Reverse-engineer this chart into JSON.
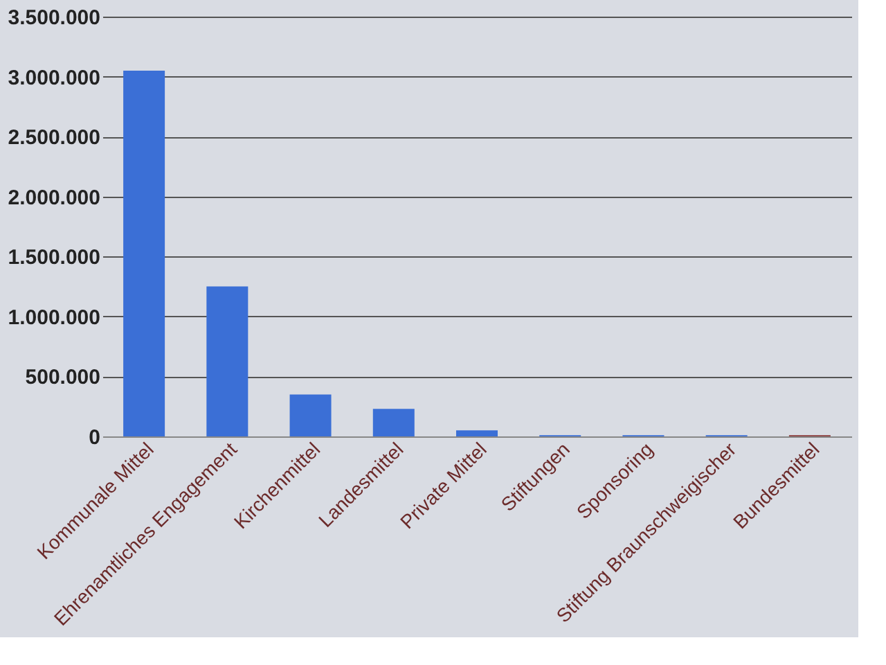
{
  "chart_data": {
    "type": "bar",
    "categories": [
      "Kommunale Mittel",
      "Ehrenamtliches Engagement",
      "Kirchenmittel",
      "Landesmittel",
      "Private Mittel",
      "Stiftungen",
      "Sponsoring",
      "Stiftung Braunschweigischer",
      "Bundesmittel"
    ],
    "values": [
      3050000,
      1250000,
      350000,
      230000,
      50000,
      10000,
      10000,
      10000,
      10000
    ],
    "colors": [
      "#3b6fd6",
      "#3b6fd6",
      "#3b6fd6",
      "#3b6fd6",
      "#3b6fd6",
      "#3b6fd6",
      "#3b6fd6",
      "#3b6fd6",
      "#8a3a3a"
    ],
    "ylim": [
      0,
      3500000
    ],
    "yticks": [
      0,
      {
        "value": 500000,
        "label": "500.000"
      },
      {
        "value": 1000000,
        "label": "1.000.000"
      },
      {
        "value": 1500000,
        "label": "1.500.000"
      },
      {
        "value": 2000000,
        "label": "2.000.000"
      },
      {
        "value": 2500000,
        "label": "2.500.000"
      },
      {
        "value": 3000000,
        "label": "3.000.000"
      },
      {
        "value": 3500000,
        "label": "3.500.000"
      }
    ],
    "grid": "y"
  }
}
